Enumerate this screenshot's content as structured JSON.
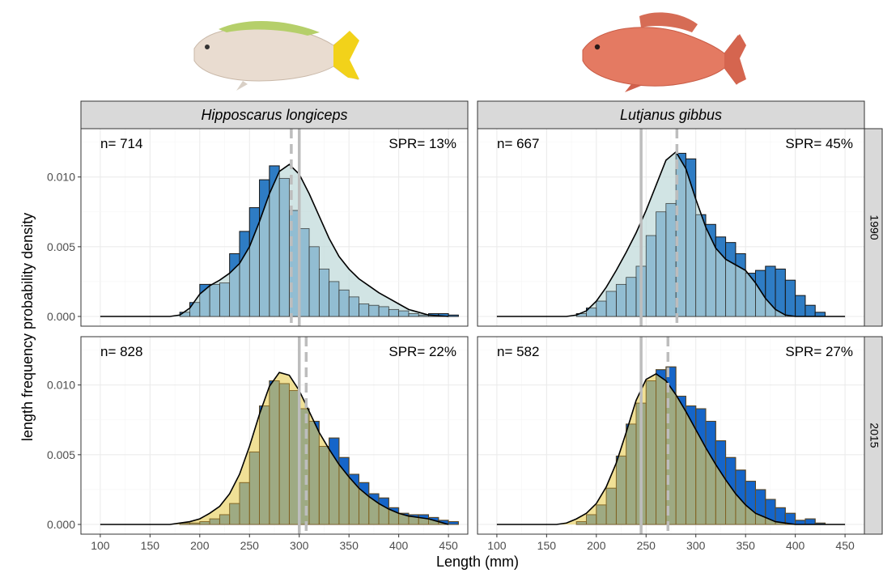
{
  "chart_data": {
    "type": "histogram-density-facet",
    "xlabel": "Length (mm)",
    "ylabel": "length frequency probability density",
    "xlim": [
      100,
      450
    ],
    "xticks": [
      100,
      150,
      200,
      250,
      300,
      350,
      400,
      450
    ],
    "ylim": [
      0,
      0.013
    ],
    "yticks": [
      "0.000",
      "0.005",
      "0.010"
    ],
    "ytick_values": [
      0,
      0.005,
      0.01
    ],
    "bin_width": 10,
    "bin_start": 180,
    "grid": true,
    "colors": {
      "hist_1990": "#2e7cc4",
      "hist_2015": "#1565c9",
      "density_fill_1990": "#bdd9d8",
      "density_fill_2015": "#e8cf5e",
      "overlap_2015": "#7c9a4a",
      "ref_line": "#bdbdbd",
      "strip_bg": "#d9d9d9"
    },
    "species": [
      "Hipposcarus longiceps",
      "Lutjanus gibbus"
    ],
    "years": [
      "1990",
      "2015"
    ],
    "panels": [
      {
        "species": "Hipposcarus longiceps",
        "year": "1990",
        "n_label": "n= 714",
        "spr_label": "SPR= 13%",
        "solid_line": 300,
        "dashed_line": 292,
        "hist": [
          0.0003,
          0.001,
          0.0023,
          0.0023,
          0.0024,
          0.0045,
          0.0061,
          0.0078,
          0.0098,
          0.0108,
          0.0099,
          0.0076,
          0.0063,
          0.005,
          0.0034,
          0.0025,
          0.0019,
          0.0014,
          0.0009,
          0.0008,
          0.0007,
          0.0005,
          0.0004,
          0.0002,
          0.0001,
          0.0002,
          0.0002,
          0.0001
        ],
        "density": [
          [
            100,
            0
          ],
          [
            170,
            0
          ],
          [
            180,
            0.0001
          ],
          [
            190,
            0.0006
          ],
          [
            200,
            0.0016
          ],
          [
            210,
            0.0022
          ],
          [
            220,
            0.0026
          ],
          [
            230,
            0.0031
          ],
          [
            240,
            0.0038
          ],
          [
            250,
            0.005
          ],
          [
            260,
            0.0068
          ],
          [
            270,
            0.0088
          ],
          [
            280,
            0.0104
          ],
          [
            290,
            0.0109
          ],
          [
            300,
            0.0102
          ],
          [
            310,
            0.0088
          ],
          [
            320,
            0.0072
          ],
          [
            330,
            0.0056
          ],
          [
            340,
            0.0043
          ],
          [
            350,
            0.0034
          ],
          [
            360,
            0.0027
          ],
          [
            370,
            0.0022
          ],
          [
            380,
            0.0017
          ],
          [
            390,
            0.0013
          ],
          [
            400,
            0.0009
          ],
          [
            410,
            0.0005
          ],
          [
            420,
            0.0003
          ],
          [
            430,
            0.0001
          ],
          [
            440,
            5e-05
          ],
          [
            450,
            0
          ]
        ]
      },
      {
        "species": "Lutjanus gibbus",
        "year": "1990",
        "n_label": "n= 667",
        "spr_label": "SPR= 45%",
        "solid_line": 245,
        "dashed_line": 281,
        "hist": [
          0.0002,
          0.0006,
          0.0011,
          0.0018,
          0.0023,
          0.0028,
          0.0036,
          0.0058,
          0.0075,
          0.0081,
          0.0117,
          0.0113,
          0.0073,
          0.0066,
          0.0057,
          0.0053,
          0.0045,
          0.0031,
          0.0033,
          0.0036,
          0.0034,
          0.0026,
          0.0015,
          0.0008,
          0.0003,
          0,
          0,
          0
        ],
        "density": [
          [
            100,
            0
          ],
          [
            170,
            0
          ],
          [
            180,
            0.0001
          ],
          [
            190,
            0.0004
          ],
          [
            200,
            0.0011
          ],
          [
            210,
            0.0021
          ],
          [
            220,
            0.0033
          ],
          [
            230,
            0.0046
          ],
          [
            240,
            0.006
          ],
          [
            250,
            0.0076
          ],
          [
            260,
            0.0094
          ],
          [
            270,
            0.0112
          ],
          [
            280,
            0.0118
          ],
          [
            290,
            0.0106
          ],
          [
            300,
            0.0084
          ],
          [
            310,
            0.0064
          ],
          [
            320,
            0.0049
          ],
          [
            330,
            0.0041
          ],
          [
            340,
            0.0037
          ],
          [
            350,
            0.0033
          ],
          [
            360,
            0.0024
          ],
          [
            370,
            0.0013
          ],
          [
            380,
            0.0005
          ],
          [
            390,
            0.0001
          ],
          [
            400,
            0
          ],
          [
            450,
            0
          ]
        ]
      },
      {
        "species": "Hipposcarus longiceps",
        "year": "2015",
        "n_label": "n= 828",
        "spr_label": "SPR= 22%",
        "solid_line": 300,
        "dashed_line": 307,
        "hist": [
          0.0001,
          0.0001,
          0.0002,
          0.0004,
          0.0007,
          0.0015,
          0.003,
          0.0052,
          0.0085,
          0.0103,
          0.0101,
          0.0096,
          0.0083,
          0.0074,
          0.0056,
          0.0062,
          0.0048,
          0.0036,
          0.003,
          0.0022,
          0.0019,
          0.0012,
          0.0008,
          0.0007,
          0.0007,
          0.0005,
          0.0003,
          0.0002
        ],
        "density": [
          [
            100,
            0
          ],
          [
            170,
            0
          ],
          [
            180,
            0.0001
          ],
          [
            190,
            0.0002
          ],
          [
            200,
            0.0004
          ],
          [
            210,
            0.0008
          ],
          [
            220,
            0.0013
          ],
          [
            230,
            0.0022
          ],
          [
            240,
            0.0036
          ],
          [
            250,
            0.0056
          ],
          [
            260,
            0.0079
          ],
          [
            270,
            0.0099
          ],
          [
            280,
            0.0109
          ],
          [
            290,
            0.0107
          ],
          [
            300,
            0.0096
          ],
          [
            310,
            0.0081
          ],
          [
            320,
            0.0066
          ],
          [
            330,
            0.0054
          ],
          [
            340,
            0.0043
          ],
          [
            350,
            0.0034
          ],
          [
            360,
            0.0026
          ],
          [
            370,
            0.002
          ],
          [
            380,
            0.0015
          ],
          [
            390,
            0.0011
          ],
          [
            400,
            0.0008
          ],
          [
            410,
            0.0006
          ],
          [
            420,
            0.0005
          ],
          [
            430,
            0.0004
          ],
          [
            440,
            0.0002
          ],
          [
            450,
            0
          ]
        ]
      },
      {
        "species": "Lutjanus gibbus",
        "year": "2015",
        "n_label": "n= 582",
        "spr_label": "SPR= 27%",
        "solid_line": 245,
        "dashed_line": 272,
        "hist": [
          0.0002,
          0.0007,
          0.0014,
          0.0026,
          0.0049,
          0.0072,
          0.0087,
          0.0103,
          0.0111,
          0.0113,
          0.0092,
          0.0085,
          0.0083,
          0.0074,
          0.006,
          0.0048,
          0.0039,
          0.0031,
          0.0025,
          0.0018,
          0.0012,
          0.0008,
          0.0003,
          0.0004,
          0.0001,
          0,
          0,
          0
        ],
        "density": [
          [
            100,
            0
          ],
          [
            160,
            0
          ],
          [
            170,
            0.0001
          ],
          [
            180,
            0.0004
          ],
          [
            190,
            0.0008
          ],
          [
            200,
            0.0015
          ],
          [
            210,
            0.0027
          ],
          [
            220,
            0.0044
          ],
          [
            230,
            0.0066
          ],
          [
            240,
            0.0089
          ],
          [
            250,
            0.0104
          ],
          [
            260,
            0.0108
          ],
          [
            270,
            0.0103
          ],
          [
            280,
            0.0093
          ],
          [
            290,
            0.0081
          ],
          [
            300,
            0.0068
          ],
          [
            310,
            0.0055
          ],
          [
            320,
            0.0043
          ],
          [
            330,
            0.0032
          ],
          [
            340,
            0.0022
          ],
          [
            350,
            0.0014
          ],
          [
            360,
            0.0008
          ],
          [
            370,
            0.0005
          ],
          [
            380,
            0.0002
          ],
          [
            390,
            0.0001
          ],
          [
            400,
            0
          ],
          [
            450,
            0
          ]
        ]
      }
    ]
  },
  "images": {
    "left_fish": "parrotfish-icon",
    "right_fish": "snapper-icon"
  }
}
